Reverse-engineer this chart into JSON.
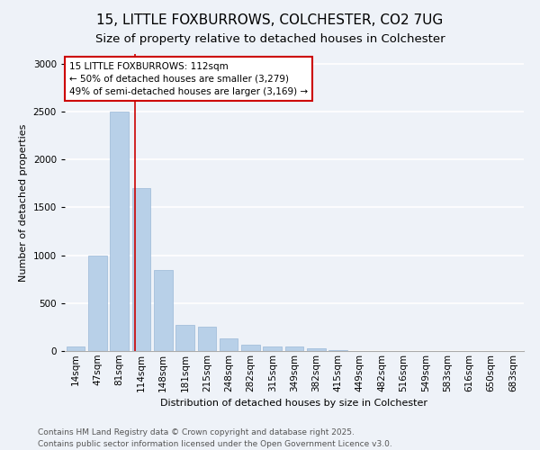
{
  "title": "15, LITTLE FOXBURROWS, COLCHESTER, CO2 7UG",
  "subtitle": "Size of property relative to detached houses in Colchester",
  "xlabel": "Distribution of detached houses by size in Colchester",
  "ylabel": "Number of detached properties",
  "bar_color": "#b8d0e8",
  "bar_edge_color": "#9ab8d8",
  "categories": [
    "14sqm",
    "47sqm",
    "81sqm",
    "114sqm",
    "148sqm",
    "181sqm",
    "215sqm",
    "248sqm",
    "282sqm",
    "315sqm",
    "349sqm",
    "382sqm",
    "415sqm",
    "449sqm",
    "482sqm",
    "516sqm",
    "549sqm",
    "583sqm",
    "616sqm",
    "650sqm",
    "683sqm"
  ],
  "values": [
    50,
    1000,
    2500,
    1700,
    850,
    270,
    250,
    130,
    70,
    50,
    45,
    30,
    8,
    2,
    0,
    0,
    0,
    0,
    0,
    0,
    0
  ],
  "ylim": [
    0,
    3100
  ],
  "yticks": [
    0,
    500,
    1000,
    1500,
    2000,
    2500,
    3000
  ],
  "red_line_x": 2.72,
  "annotation_title": "15 LITTLE FOXBURROWS: 112sqm",
  "annotation_line1": "← 50% of detached houses are smaller (3,279)",
  "annotation_line2": "49% of semi-detached houses are larger (3,169) →",
  "annotation_box_color": "#ffffff",
  "annotation_box_edge": "#cc0000",
  "red_line_color": "#cc0000",
  "footer1": "Contains HM Land Registry data © Crown copyright and database right 2025.",
  "footer2": "Contains public sector information licensed under the Open Government Licence v3.0.",
  "background_color": "#eef2f8",
  "grid_color": "#ffffff",
  "title_fontsize": 11,
  "subtitle_fontsize": 9.5,
  "axis_label_fontsize": 8,
  "tick_fontsize": 7.5,
  "annotation_fontsize": 7.5,
  "footer_fontsize": 6.5
}
